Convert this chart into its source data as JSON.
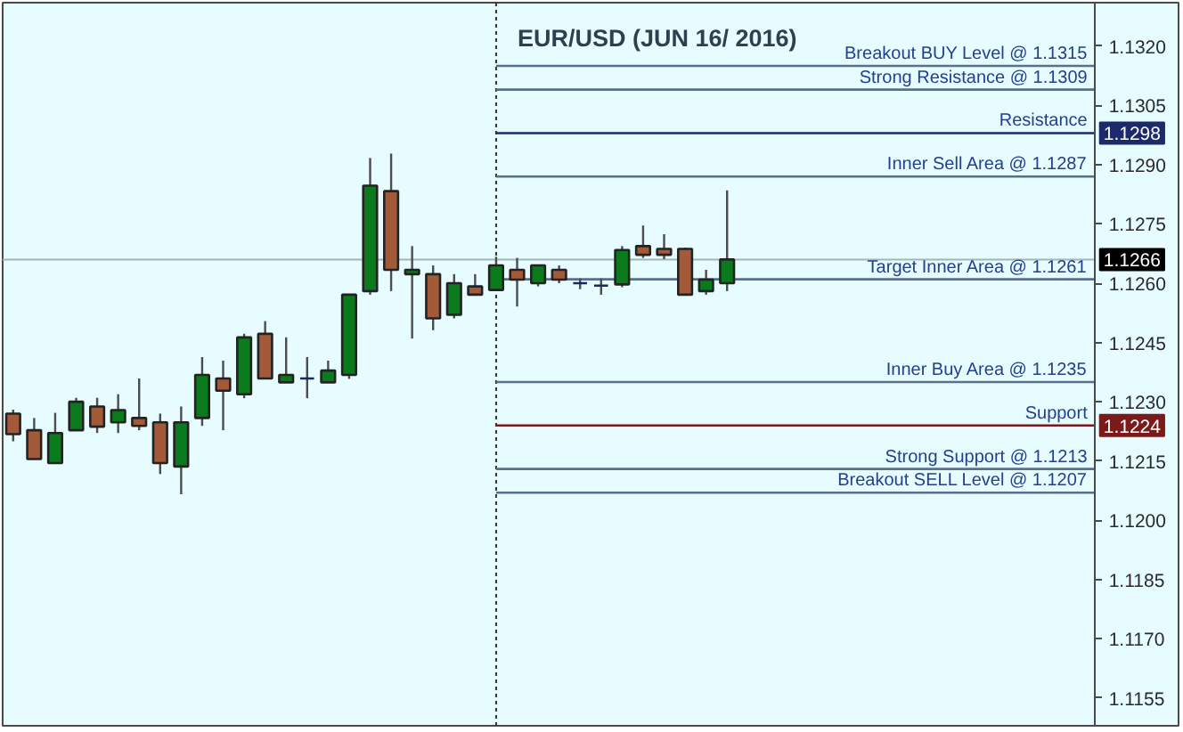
{
  "chart_data": {
    "type": "candlestick",
    "title": "EUR/USD (JUN 16/ 2016)",
    "categories": [
      null,
      null,
      null,
      null,
      null,
      null,
      null,
      null,
      null,
      null,
      null,
      null,
      null,
      null,
      null,
      null,
      null,
      null,
      null,
      null,
      null,
      null,
      null,
      null,
      null,
      null,
      null,
      null,
      null,
      null,
      null,
      null,
      null,
      null,
      null,
      null,
      null,
      null,
      null,
      null,
      null,
      null,
      null,
      null,
      null,
      null,
      null,
      null,
      null,
      null,
      null,
      null,
      null,
      null,
      null,
      null
    ],
    "ohlc": [
      [
        1.1227,
        1.1228,
        1.122,
        1.12218
      ],
      [
        1.12228,
        1.12259,
        1.12155,
        1.12155
      ],
      [
        1.12145,
        1.12272,
        1.12145,
        1.12221
      ],
      [
        1.12228,
        1.1231,
        1.12228,
        1.123
      ],
      [
        1.12288,
        1.1231,
        1.12221,
        1.12237
      ],
      [
        1.12248,
        1.12319,
        1.12221,
        1.12279
      ],
      [
        1.12259,
        1.12359,
        1.12228,
        1.12239
      ],
      [
        1.12248,
        1.1227,
        1.12117,
        1.12145
      ],
      [
        1.12136,
        1.12288,
        1.12066,
        1.12248
      ],
      [
        1.12259,
        1.12413,
        1.12239,
        1.12368
      ],
      [
        1.12359,
        1.12404,
        1.12228,
        1.12328
      ],
      [
        1.12319,
        1.12472,
        1.12309,
        1.12463
      ],
      [
        1.12472,
        1.12504,
        1.12359,
        1.12359
      ],
      [
        1.12349,
        1.12463,
        1.12349,
        1.12368
      ],
      [
        1.12359,
        1.12413,
        1.12309,
        1.12359
      ],
      [
        1.12349,
        1.12404,
        1.12349,
        1.12379
      ],
      [
        1.12368,
        1.12571,
        1.12358,
        1.12571
      ],
      [
        1.1258,
        1.12917,
        1.12571,
        1.12847
      ],
      [
        1.12833,
        1.12928,
        1.1258,
        1.12634
      ],
      [
        1.12623,
        1.12694,
        1.1246,
        1.12634
      ],
      [
        1.12623,
        1.12645,
        1.12481,
        1.12511
      ],
      [
        1.1252,
        1.12623,
        1.12511,
        1.126
      ],
      [
        1.12592,
        1.12623,
        1.12571,
        1.12571
      ],
      [
        1.12583,
        1.12667,
        1.12583,
        1.12645
      ],
      [
        1.12634,
        1.12664,
        1.12541,
        1.12609
      ],
      [
        1.126,
        1.12645,
        1.12592,
        1.12645
      ],
      [
        1.12634,
        1.12645,
        1.126,
        1.12609
      ],
      [
        1.126,
        1.12612,
        1.12585,
        1.126
      ],
      [
        1.12594,
        1.12612,
        1.12571,
        1.12594
      ],
      [
        1.12597,
        1.12694,
        1.1259,
        1.12684
      ],
      [
        1.12694,
        1.12746,
        1.12664,
        1.12672
      ],
      [
        1.12687,
        1.12724,
        1.12661,
        1.12672
      ],
      [
        1.12687,
        1.1269,
        1.12571,
        1.12571
      ],
      [
        1.1258,
        1.12634,
        1.12571,
        1.12609
      ],
      [
        1.126,
        1.12835,
        1.1258,
        1.1266
      ],
      null,
      null,
      null,
      null,
      null,
      null,
      null,
      null,
      null,
      null,
      null,
      null,
      null,
      null,
      null,
      null,
      null,
      null,
      null,
      null,
      null
    ],
    "colors": [
      "#a35a38",
      "#a35a38",
      "#0a7a1c",
      "#0a7a1c",
      "#a35a38",
      "#0a7a1c",
      "#a35a38",
      "#a35a38",
      "#0a7a1c",
      "#0a7a1c",
      "#a35a38",
      "#0a7a1c",
      "#a35a38",
      "#0a7a1c",
      "#1a2a5a",
      "#0a7a1c",
      "#0a7a1c",
      "#0a7a1c",
      "#a35a38",
      "#0a7a1c",
      "#a35a38",
      "#0a7a1c",
      "#a35a38",
      "#0a7a1c",
      "#a35a38",
      "#0a7a1c",
      "#a35a38",
      "#1a2a5a",
      "#1a2a5a",
      "#0a7a1c",
      "#a35a38",
      "#a35a38",
      "#a35a38",
      "#0a7a1c",
      "#0a7a1c",
      null,
      null,
      null,
      null,
      null,
      null,
      null,
      null,
      null,
      null,
      null,
      null,
      null,
      null,
      null,
      null,
      null,
      null,
      null,
      null,
      null
    ],
    "ylim": [
      1.1148,
      1.1331
    ],
    "yticks": [
      1.1155,
      {
        "value": 1.117,
        "label": "1.1170"
      },
      1.1185,
      {
        "value": 1.12,
        "label": "1.1200"
      },
      1.1215,
      {
        "value": 1.123,
        "label": "1.1230"
      },
      1.1245,
      {
        "value": 1.126,
        "label": "1.1260"
      },
      1.1275,
      {
        "value": 1.129,
        "label": "1.1290"
      },
      1.1305,
      {
        "value": 1.132,
        "label": "1.1320"
      }
    ],
    "ref_lines": [
      {
        "axis": "y",
        "value": 1.1315,
        "label": "Breakout BUY Level @ 1.1315",
        "color": "#5a6f8c"
      },
      {
        "axis": "y",
        "value": 1.1309,
        "label": "Strong Resistance @ 1.1309",
        "color": "#5a6f8c"
      },
      {
        "axis": "y",
        "value": 1.1298,
        "label": "Resistance",
        "color": "#1c2a6b"
      },
      {
        "axis": "y",
        "value": 1.1287,
        "label": "Inner Sell Area @ 1.1287",
        "color": "#5a6f8c"
      },
      {
        "axis": "y",
        "value": 1.1266
      },
      {
        "axis": "y",
        "value": 1.1261,
        "label": "Target Inner Area @ 1.1261",
        "color": "#5a6f8c"
      },
      {
        "axis": "y",
        "value": 1.1235,
        "label": "Inner Buy Area @ 1.1235",
        "color": "#5a6f8c"
      },
      {
        "axis": "y",
        "value": 1.1224,
        "label": "Support",
        "color": "#7a1a1a"
      },
      {
        "axis": "y",
        "value": 1.1213,
        "label": "Strong Support @ 1.1213",
        "color": "#5a6f8c"
      },
      {
        "axis": "y",
        "value": 1.1207,
        "label": "Breakout SELL Level @ 1.1207",
        "color": "#5a6f8c"
      }
    ],
    "annotations": [
      {
        "text": "1.1298",
        "y": 1.1298
      },
      {
        "text": "1.1266",
        "y": 1.1266
      },
      {
        "text": "1.1224",
        "y": 1.1224
      }
    ]
  }
}
